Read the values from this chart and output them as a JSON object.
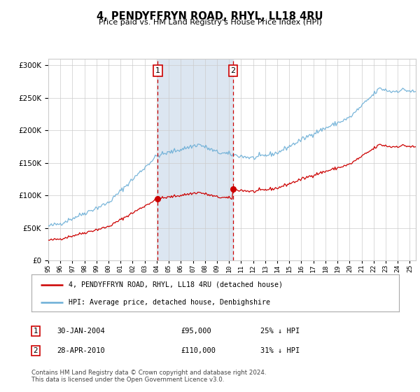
{
  "title": "4, PENDYFFRYN ROAD, RHYL, LL18 4RU",
  "subtitle": "Price paid vs. HM Land Registry's House Price Index (HPI)",
  "legend_line1": "4, PENDYFFRYN ROAD, RHYL, LL18 4RU (detached house)",
  "legend_line2": "HPI: Average price, detached house, Denbighshire",
  "annotation1_date": "30-JAN-2004",
  "annotation1_price": "£95,000",
  "annotation1_hpi": "25% ↓ HPI",
  "annotation2_date": "28-APR-2010",
  "annotation2_price": "£110,000",
  "annotation2_hpi": "31% ↓ HPI",
  "footnote": "Contains HM Land Registry data © Crown copyright and database right 2024.\nThis data is licensed under the Open Government Licence v3.0.",
  "sale1_year": 2004.08,
  "sale1_price": 95000,
  "sale2_year": 2010.33,
  "sale2_price": 110000,
  "hpi_color": "#6baed6",
  "price_color": "#cc0000",
  "highlight_color": "#dce6f1",
  "background_color": "#ffffff",
  "ylim": [
    0,
    310000
  ],
  "xlim_start": 1995.0,
  "xlim_end": 2025.5,
  "noise_seed": 42
}
